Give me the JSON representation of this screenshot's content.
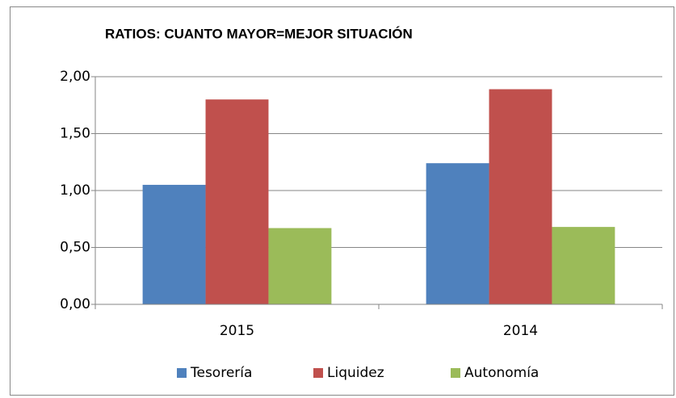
{
  "chart_data": {
    "type": "bar",
    "title": "RATIOS: CUANTO MAYOR=MEJOR SITUACIÓN",
    "categories": [
      "2015",
      "2014"
    ],
    "series": [
      {
        "name": "Tesorería",
        "color": "#4f81bd",
        "values": [
          1.05,
          1.24
        ]
      },
      {
        "name": "Liquidez",
        "color": "#c0504d",
        "values": [
          1.8,
          1.89
        ]
      },
      {
        "name": "Autonomía",
        "color": "#9bbb59",
        "values": [
          0.67,
          0.68
        ]
      }
    ],
    "ylim": [
      0,
      2
    ],
    "yticks": [
      {
        "value": 0,
        "label": "0,00"
      },
      {
        "value": 0.5,
        "label": "0,50"
      },
      {
        "value": 1,
        "label": "1,00"
      },
      {
        "value": 1.5,
        "label": "1,50"
      },
      {
        "value": 2,
        "label": "2,00"
      }
    ],
    "grid": true,
    "legend": "bottom"
  }
}
